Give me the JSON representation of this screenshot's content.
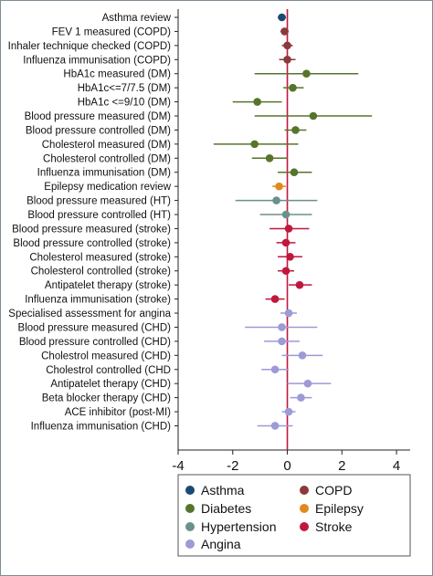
{
  "chart_data": {
    "type": "forest",
    "xlim": [
      -4,
      4.5
    ],
    "xticks": [
      -4,
      -2,
      0,
      2,
      4
    ],
    "xtick_labels": [
      "-4",
      "-2",
      "0",
      "2",
      "4"
    ],
    "reference_line_x": 0,
    "grid": false,
    "legend_position": "bottom",
    "colors": {
      "Asthma": "#1a4a73",
      "COPD": "#8b3a3a",
      "Diabetes": "#56752b",
      "Epilepsy": "#e08a1e",
      "Hypertension": "#6a918c",
      "Stroke": "#c0183c",
      "Angina": "#9d9ad6"
    },
    "legend": [
      "Asthma",
      "COPD",
      "Diabetes",
      "Epilepsy",
      "Hypertension",
      "Stroke",
      "Angina"
    ],
    "rows": [
      {
        "label": "Asthma review",
        "group": "Asthma",
        "est": -0.2,
        "lo": -0.35,
        "hi": -0.05
      },
      {
        "label": "FEV 1 measured (COPD)",
        "group": "COPD",
        "est": -0.1,
        "lo": -0.25,
        "hi": 0.05
      },
      {
        "label": "Inhaler technique checked (COPD)",
        "group": "COPD",
        "est": 0.0,
        "lo": -0.2,
        "hi": 0.2
      },
      {
        "label": "Influenza immunisation (COPD)",
        "group": "COPD",
        "est": 0.0,
        "lo": -0.3,
        "hi": 0.3
      },
      {
        "label": "HbA1c measured (DM)",
        "group": "Diabetes",
        "est": 0.7,
        "lo": -1.2,
        "hi": 2.6
      },
      {
        "label": "HbA1c<=7/7.5 (DM)",
        "group": "Diabetes",
        "est": 0.2,
        "lo": -0.15,
        "hi": 0.6
      },
      {
        "label": "HbA1c <=9/10 (DM)",
        "group": "Diabetes",
        "est": -1.1,
        "lo": -2.0,
        "hi": -0.2
      },
      {
        "label": "Blood pressure measured (DM)",
        "group": "Diabetes",
        "est": 0.95,
        "lo": -1.2,
        "hi": 3.1
      },
      {
        "label": "Blood pressure controlled (DM)",
        "group": "Diabetes",
        "est": 0.3,
        "lo": -0.1,
        "hi": 0.7
      },
      {
        "label": "Cholesterol measured (DM)",
        "group": "Diabetes",
        "est": -1.2,
        "lo": -2.7,
        "hi": 0.4
      },
      {
        "label": "Cholesterol controlled (DM)",
        "group": "Diabetes",
        "est": -0.65,
        "lo": -1.3,
        "hi": 0.0
      },
      {
        "label": "Influenza immunisation (DM)",
        "group": "Diabetes",
        "est": 0.25,
        "lo": -0.35,
        "hi": 0.9
      },
      {
        "label": "Epilepsy medication review",
        "group": "Epilepsy",
        "est": -0.3,
        "lo": -0.55,
        "hi": -0.05
      },
      {
        "label": "Blood pressure measured (HT)",
        "group": "Hypertension",
        "est": -0.4,
        "lo": -1.9,
        "hi": 1.1
      },
      {
        "label": "Blood pressure controlled (HT)",
        "group": "Hypertension",
        "est": -0.05,
        "lo": -1.0,
        "hi": 0.9
      },
      {
        "label": "Blood pressure measured (stroke)",
        "group": "Stroke",
        "est": 0.05,
        "lo": -0.65,
        "hi": 0.8
      },
      {
        "label": "Blood pressure controlled (stroke)",
        "group": "Stroke",
        "est": -0.05,
        "lo": -0.4,
        "hi": 0.3
      },
      {
        "label": "Cholesterol measured (stroke)",
        "group": "Stroke",
        "est": 0.1,
        "lo": -0.35,
        "hi": 0.55
      },
      {
        "label": "Cholesterol controlled (stroke)",
        "group": "Stroke",
        "est": -0.05,
        "lo": -0.35,
        "hi": 0.25
      },
      {
        "label": "Antipatelet therapy (stroke)",
        "group": "Stroke",
        "est": 0.45,
        "lo": 0.05,
        "hi": 0.9
      },
      {
        "label": "Influenza immunisation (stroke)",
        "group": "Stroke",
        "est": -0.45,
        "lo": -0.8,
        "hi": -0.1
      },
      {
        "label": "Specialised assessment for angina",
        "group": "Angina",
        "est": 0.05,
        "lo": -0.25,
        "hi": 0.35
      },
      {
        "label": "Blood pressure measured (CHD)",
        "group": "Angina",
        "est": -0.2,
        "lo": -1.55,
        "hi": 1.1
      },
      {
        "label": "Blood pressure controlled (CHD)",
        "group": "Angina",
        "est": -0.2,
        "lo": -0.85,
        "hi": 0.45
      },
      {
        "label": "Cholestrol measured (CHD)",
        "group": "Angina",
        "est": 0.55,
        "lo": -0.2,
        "hi": 1.3
      },
      {
        "label": "Cholestrol controlled (CHD",
        "group": "Angina",
        "est": -0.45,
        "lo": -0.95,
        "hi": 0.05
      },
      {
        "label": "Antipatelet therapy (CHD)",
        "group": "Angina",
        "est": 0.75,
        "lo": 0.0,
        "hi": 1.6
      },
      {
        "label": "Beta blocker therapy (CHD)",
        "group": "Angina",
        "est": 0.5,
        "lo": 0.1,
        "hi": 0.9
      },
      {
        "label": "ACE inhibitor (post-MI)",
        "group": "Angina",
        "est": 0.05,
        "lo": -0.2,
        "hi": 0.3
      },
      {
        "label": "Influenza immunisation (CHD)",
        "group": "Angina",
        "est": -0.45,
        "lo": -1.1,
        "hi": 0.2
      }
    ]
  }
}
